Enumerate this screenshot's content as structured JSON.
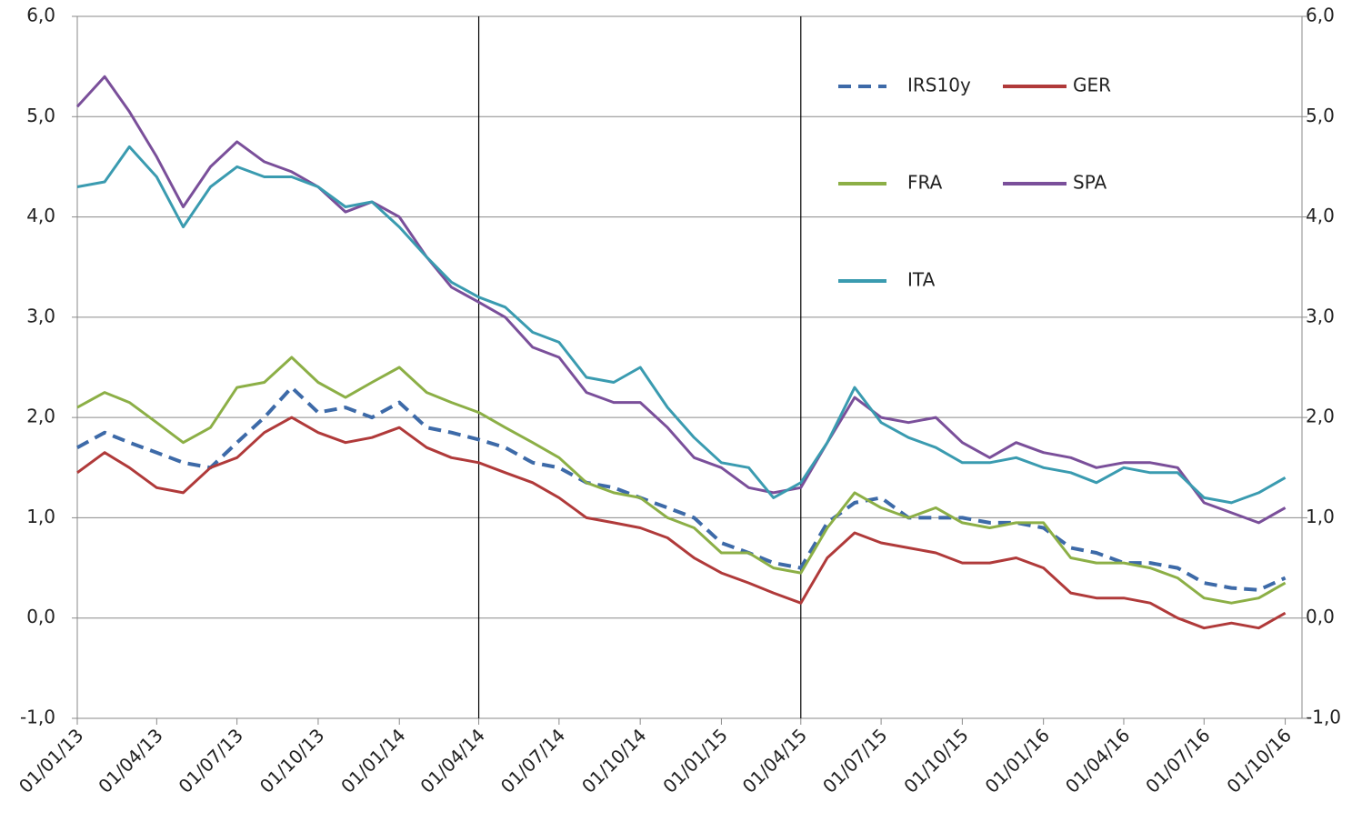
{
  "chart_data": {
    "type": "line",
    "x": [
      "01/01/13",
      "01/02/13",
      "01/03/13",
      "01/04/13",
      "01/05/13",
      "01/06/13",
      "01/07/13",
      "01/08/13",
      "01/09/13",
      "01/10/13",
      "01/11/13",
      "01/12/13",
      "01/01/14",
      "01/02/14",
      "01/03/14",
      "01/04/14",
      "01/05/14",
      "01/06/14",
      "01/07/14",
      "01/08/14",
      "01/09/14",
      "01/10/14",
      "01/11/14",
      "01/12/14",
      "01/01/15",
      "01/02/15",
      "01/03/15",
      "01/04/15",
      "01/05/15",
      "01/06/15",
      "01/07/15",
      "01/08/15",
      "01/09/15",
      "01/10/15",
      "01/11/15",
      "01/12/15",
      "01/01/16",
      "01/02/16",
      "01/03/16",
      "01/04/16",
      "01/05/16",
      "01/06/16",
      "01/07/16",
      "01/08/16",
      "01/09/16",
      "01/10/16"
    ],
    "series": [
      {
        "name": "IRS10y",
        "color": "#3d6aa8",
        "dash": true,
        "values": [
          1.7,
          1.85,
          1.75,
          1.65,
          1.55,
          1.5,
          1.75,
          2.0,
          2.3,
          2.05,
          2.1,
          2.0,
          2.15,
          1.9,
          1.85,
          1.78,
          1.7,
          1.55,
          1.5,
          1.35,
          1.3,
          1.2,
          1.1,
          1.0,
          0.75,
          0.65,
          0.55,
          0.5,
          0.95,
          1.15,
          1.2,
          1.0,
          1.0,
          1.0,
          0.95,
          0.95,
          0.9,
          0.7,
          0.65,
          0.55,
          0.55,
          0.5,
          0.35,
          0.3,
          0.28,
          0.4
        ]
      },
      {
        "name": "GER",
        "color": "#b03a3a",
        "dash": false,
        "values": [
          1.45,
          1.65,
          1.5,
          1.3,
          1.25,
          1.5,
          1.6,
          1.85,
          2.0,
          1.85,
          1.75,
          1.8,
          1.9,
          1.7,
          1.6,
          1.55,
          1.45,
          1.35,
          1.2,
          1.0,
          0.95,
          0.9,
          0.8,
          0.6,
          0.45,
          0.35,
          0.25,
          0.15,
          0.6,
          0.85,
          0.75,
          0.7,
          0.65,
          0.55,
          0.55,
          0.6,
          0.5,
          0.25,
          0.2,
          0.2,
          0.15,
          0.0,
          -0.1,
          -0.05,
          -0.1,
          0.05
        ]
      },
      {
        "name": "FRA",
        "color": "#8caf46",
        "dash": false,
        "values": [
          2.1,
          2.25,
          2.15,
          1.95,
          1.75,
          1.9,
          2.3,
          2.35,
          2.6,
          2.35,
          2.2,
          2.35,
          2.5,
          2.25,
          2.15,
          2.05,
          1.9,
          1.75,
          1.6,
          1.35,
          1.25,
          1.2,
          1.0,
          0.9,
          0.65,
          0.65,
          0.5,
          0.45,
          0.9,
          1.25,
          1.1,
          1.0,
          1.1,
          0.95,
          0.9,
          0.95,
          0.95,
          0.6,
          0.55,
          0.55,
          0.5,
          0.4,
          0.2,
          0.15,
          0.2,
          0.35
        ]
      },
      {
        "name": "SPA",
        "color": "#7a4f9a",
        "dash": false,
        "values": [
          5.1,
          5.4,
          5.05,
          4.6,
          4.1,
          4.5,
          4.75,
          4.55,
          4.45,
          4.3,
          4.05,
          4.15,
          4.0,
          3.6,
          3.3,
          3.15,
          3.0,
          2.7,
          2.6,
          2.25,
          2.15,
          2.15,
          1.9,
          1.6,
          1.5,
          1.3,
          1.25,
          1.3,
          1.75,
          2.2,
          2.0,
          1.95,
          2.0,
          1.75,
          1.6,
          1.75,
          1.65,
          1.6,
          1.5,
          1.55,
          1.55,
          1.5,
          1.15,
          1.05,
          0.95,
          1.1
        ]
      },
      {
        "name": "ITA",
        "color": "#3a9bb0",
        "dash": false,
        "values": [
          4.3,
          4.35,
          4.7,
          4.4,
          3.9,
          4.3,
          4.5,
          4.4,
          4.4,
          4.3,
          4.1,
          4.15,
          3.9,
          3.6,
          3.35,
          3.2,
          3.1,
          2.85,
          2.75,
          2.4,
          2.35,
          2.5,
          2.1,
          1.8,
          1.55,
          1.5,
          1.2,
          1.35,
          1.75,
          2.3,
          1.95,
          1.8,
          1.7,
          1.55,
          1.55,
          1.6,
          1.5,
          1.45,
          1.35,
          1.5,
          1.45,
          1.45,
          1.2,
          1.15,
          1.25,
          1.4
        ]
      }
    ],
    "xlim": [
      "01/01/13",
      "20/10/16"
    ],
    "xticks": [
      "01/01/13",
      "01/04/13",
      "01/07/13",
      "01/10/13",
      "01/01/14",
      "01/04/14",
      "01/07/14",
      "01/10/14",
      "01/01/15",
      "01/04/15",
      "01/07/15",
      "01/10/15",
      "01/01/16",
      "01/04/16",
      "01/07/16",
      "01/10/16"
    ],
    "vlines": [
      "01/04/14",
      "01/04/15"
    ],
    "ylim": [
      -1,
      6
    ],
    "yticks": [
      {
        "value": -1,
        "label": "-1,0"
      },
      {
        "value": 0,
        "label": "0,0"
      },
      {
        "value": 1,
        "label": "1,0"
      },
      {
        "value": 2,
        "label": "2,0"
      },
      {
        "value": 3,
        "label": "3,0"
      },
      {
        "value": 4,
        "label": "4,0"
      },
      {
        "value": 5,
        "label": "5,0"
      },
      {
        "value": 6,
        "label": "6,0"
      }
    ],
    "grid": true
  }
}
